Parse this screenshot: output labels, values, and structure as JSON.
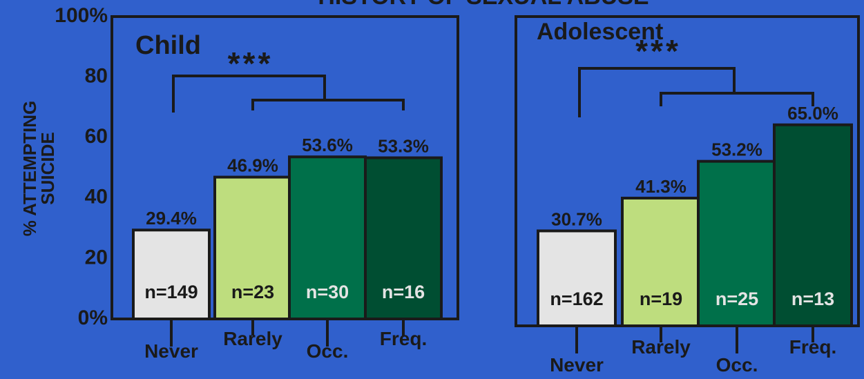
{
  "title": "HISTORY OF SEXUAL ABUSE",
  "y_axis": {
    "label_line1": "% ATTEMPTING",
    "label_line2": "SUICIDE",
    "ticks": [
      "100%",
      "80",
      "60",
      "40",
      "20",
      "0%"
    ]
  },
  "significance_marker": "***",
  "colors": {
    "background": "#3060CC",
    "frame": "#1a1a1a",
    "never": "#E4E4E4",
    "rarely": "#BEDD7E",
    "occasionally": "#00704A",
    "frequently": "#004E32"
  },
  "chart_data": [
    {
      "type": "bar",
      "title": "Child",
      "categories": [
        "Never",
        "Rarely",
        "Occ.",
        "Freq."
      ],
      "values": [
        29.4,
        46.9,
        53.6,
        53.3
      ],
      "value_labels": [
        "29.4%",
        "46.9%",
        "53.6%",
        "53.3%"
      ],
      "n_labels": [
        "n=149",
        "n=23",
        "n=30",
        "n=16"
      ],
      "ylim": [
        0,
        100
      ],
      "annotation": "***"
    },
    {
      "type": "bar",
      "title": "Adolescent",
      "categories": [
        "Never",
        "Rarely",
        "Occ.",
        "Freq."
      ],
      "values": [
        30.7,
        41.3,
        53.2,
        65.0
      ],
      "value_labels": [
        "30.7%",
        "41.3%",
        "53.2%",
        "65.0%"
      ],
      "n_labels": [
        "n=162",
        "n=19",
        "n=25",
        "n=13"
      ],
      "ylim": [
        0,
        100
      ],
      "annotation": "***"
    }
  ]
}
